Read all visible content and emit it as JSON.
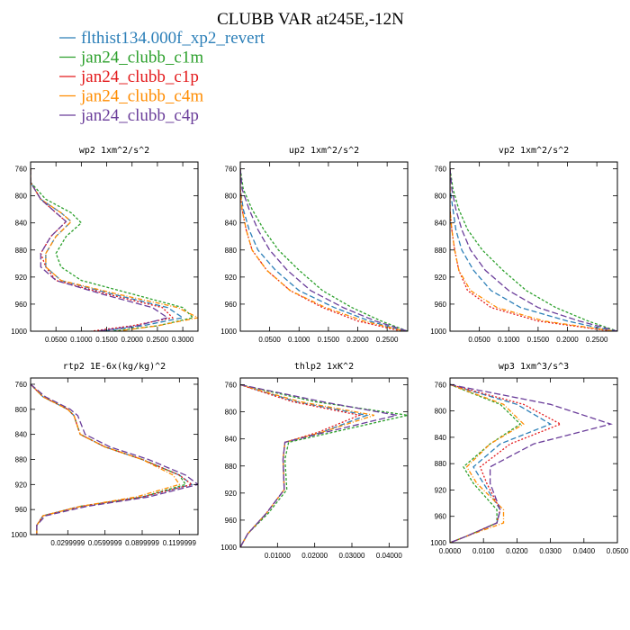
{
  "figure_title": "CLUBB VAR at245E,-12N",
  "colors": {
    "flthist134.000f_xp2_revert": "#2c7fb8",
    "jan24_clubb_c1m": "#2ca02c",
    "jan24_clubb_c1p": "#e31a1c",
    "jan24_clubb_c4m": "#ff8c00",
    "jan24_clubb_c4p": "#6a3d9a"
  },
  "legend": [
    {
      "label": "flthist134.000f_xp2_revert",
      "color": "#2c7fb8"
    },
    {
      "label": "jan24_clubb_c1m",
      "color": "#2ca02c"
    },
    {
      "label": "jan24_clubb_c1p",
      "color": "#e31a1c"
    },
    {
      "label": "jan24_clubb_c4m",
      "color": "#ff8c00"
    },
    {
      "label": "jan24_clubb_c4p",
      "color": "#6a3d9a"
    }
  ],
  "chart_data": [
    {
      "type": "line",
      "title": "wp2  1xm^2/s^2",
      "xlim": [
        0,
        0.33
      ],
      "ylim": [
        1000,
        750
      ],
      "xticks": [
        0.05,
        0.1,
        0.15,
        0.2,
        0.25,
        0.3
      ],
      "xtick_labels": [
        "0.0500",
        "0.1000",
        "0.1500",
        "0.2000",
        "0.2500",
        "0.3000"
      ],
      "yticks": [
        760,
        800,
        840,
        880,
        920,
        960,
        1000
      ],
      "series": [
        {
          "name": "flthist134.000f_xp2_revert",
          "x": [
            0.0,
            0.0,
            0.02,
            0.06,
            0.08,
            0.05,
            0.03,
            0.03,
            0.06,
            0.16,
            0.27,
            0.3,
            0.22,
            0.14
          ],
          "y": [
            760,
            780,
            805,
            825,
            838,
            860,
            885,
            905,
            925,
            945,
            965,
            980,
            992,
            1000
          ]
        },
        {
          "name": "jan24_clubb_c1m",
          "x": [
            0.0,
            0.0,
            0.03,
            0.08,
            0.1,
            0.07,
            0.05,
            0.06,
            0.1,
            0.2,
            0.3,
            0.32,
            0.25,
            0.16
          ],
          "y": [
            760,
            780,
            805,
            825,
            840,
            860,
            885,
            905,
            925,
            945,
            965,
            980,
            992,
            1000
          ]
        },
        {
          "name": "jan24_clubb_c1p",
          "x": [
            0.0,
            0.0,
            0.02,
            0.05,
            0.07,
            0.04,
            0.02,
            0.03,
            0.05,
            0.15,
            0.26,
            0.28,
            0.2,
            0.12
          ],
          "y": [
            760,
            780,
            805,
            825,
            838,
            860,
            885,
            905,
            925,
            945,
            965,
            980,
            992,
            1000
          ]
        },
        {
          "name": "jan24_clubb_c4m",
          "x": [
            0.0,
            0.0,
            0.02,
            0.06,
            0.08,
            0.05,
            0.03,
            0.03,
            0.06,
            0.17,
            0.29,
            0.33,
            0.25,
            0.17
          ],
          "y": [
            760,
            780,
            805,
            825,
            838,
            860,
            885,
            905,
            925,
            945,
            965,
            980,
            992,
            1000
          ]
        },
        {
          "name": "jan24_clubb_c4p",
          "x": [
            0.0,
            0.0,
            0.02,
            0.05,
            0.07,
            0.04,
            0.02,
            0.02,
            0.05,
            0.14,
            0.24,
            0.27,
            0.21,
            0.13
          ],
          "y": [
            760,
            780,
            805,
            825,
            838,
            860,
            885,
            905,
            925,
            945,
            965,
            980,
            992,
            1000
          ]
        }
      ]
    },
    {
      "type": "line",
      "title": "up2  1xm^2/s^2",
      "xlim": [
        0,
        0.285
      ],
      "ylim": [
        1000,
        750
      ],
      "xticks": [
        0.05,
        0.1,
        0.15,
        0.2,
        0.25
      ],
      "xtick_labels": [
        "0.0500",
        "0.1000",
        "0.1500",
        "0.2000",
        "0.2500"
      ],
      "yticks": [
        760,
        800,
        840,
        880,
        920,
        960,
        1000
      ],
      "series": [
        {
          "name": "flthist134.000f_xp2_revert",
          "x": [
            0.0,
            0.0,
            0.005,
            0.015,
            0.03,
            0.06,
            0.1,
            0.16,
            0.22,
            0.28
          ],
          "y": [
            760,
            790,
            820,
            850,
            880,
            910,
            940,
            965,
            985,
            1000
          ]
        },
        {
          "name": "jan24_clubb_c1m",
          "x": [
            0.0,
            0.005,
            0.02,
            0.04,
            0.065,
            0.1,
            0.14,
            0.19,
            0.24,
            0.285
          ],
          "y": [
            760,
            790,
            820,
            850,
            880,
            910,
            940,
            965,
            985,
            1000
          ]
        },
        {
          "name": "jan24_clubb_c1p",
          "x": [
            0.0,
            0.0,
            0.003,
            0.01,
            0.02,
            0.045,
            0.085,
            0.14,
            0.2,
            0.275
          ],
          "y": [
            760,
            790,
            820,
            850,
            880,
            910,
            940,
            965,
            985,
            1000
          ]
        },
        {
          "name": "jan24_clubb_c4m",
          "x": [
            0.0,
            0.0,
            0.003,
            0.01,
            0.02,
            0.045,
            0.085,
            0.145,
            0.21,
            0.28
          ],
          "y": [
            760,
            790,
            820,
            850,
            880,
            910,
            940,
            965,
            985,
            1000
          ]
        },
        {
          "name": "jan24_clubb_c4p",
          "x": [
            0.0,
            0.003,
            0.015,
            0.03,
            0.05,
            0.08,
            0.12,
            0.175,
            0.23,
            0.285
          ],
          "y": [
            760,
            790,
            820,
            850,
            880,
            910,
            940,
            965,
            985,
            1000
          ]
        }
      ]
    },
    {
      "type": "line",
      "title": "vp2  1xm^2/s^2",
      "xlim": [
        0,
        0.285
      ],
      "ylim": [
        1000,
        750
      ],
      "xticks": [
        0.05,
        0.1,
        0.15,
        0.2,
        0.25
      ],
      "xtick_labels": [
        "0.0500",
        "0.1000",
        "0.1500",
        "0.2000",
        "0.2500"
      ],
      "yticks": [
        760,
        800,
        840,
        880,
        920,
        960,
        1000
      ],
      "series": [
        {
          "name": "flthist134.000f_xp2_revert",
          "x": [
            0.0,
            0.0,
            0.005,
            0.01,
            0.02,
            0.04,
            0.07,
            0.12,
            0.2,
            0.28
          ],
          "y": [
            760,
            790,
            820,
            850,
            880,
            910,
            940,
            965,
            985,
            1000
          ]
        },
        {
          "name": "jan24_clubb_c1m",
          "x": [
            0.0,
            0.005,
            0.015,
            0.03,
            0.055,
            0.09,
            0.13,
            0.18,
            0.235,
            0.285
          ],
          "y": [
            760,
            790,
            820,
            850,
            880,
            910,
            940,
            965,
            985,
            1000
          ]
        },
        {
          "name": "jan24_clubb_c1p",
          "x": [
            0.0,
            0.0,
            0.0,
            0.003,
            0.008,
            0.015,
            0.03,
            0.07,
            0.15,
            0.275
          ],
          "y": [
            760,
            790,
            820,
            850,
            880,
            910,
            940,
            965,
            985,
            1000
          ]
        },
        {
          "name": "jan24_clubb_c4m",
          "x": [
            0.0,
            0.0,
            0.0,
            0.003,
            0.008,
            0.015,
            0.035,
            0.08,
            0.16,
            0.28
          ],
          "y": [
            760,
            790,
            820,
            850,
            880,
            910,
            940,
            965,
            985,
            1000
          ]
        },
        {
          "name": "jan24_clubb_c4p",
          "x": [
            0.0,
            0.003,
            0.01,
            0.02,
            0.035,
            0.06,
            0.1,
            0.15,
            0.22,
            0.285
          ],
          "y": [
            760,
            790,
            820,
            850,
            880,
            910,
            940,
            965,
            985,
            1000
          ]
        }
      ]
    },
    {
      "type": "line",
      "title": "rtp2  1E-6x(kg/kg)^2",
      "xlim": [
        0,
        0.135
      ],
      "ylim": [
        1000,
        750
      ],
      "xticks": [
        0.03,
        0.06,
        0.09,
        0.12
      ],
      "xtick_labels": [
        "0.0299999",
        "0.0599999",
        "0.0899999",
        "0.1199999"
      ],
      "yticks": [
        760,
        800,
        840,
        880,
        920,
        960,
        1000
      ],
      "series": [
        {
          "name": "flthist134.000f_xp2_revert",
          "x": [
            0.0,
            0.01,
            0.03,
            0.035,
            0.04,
            0.06,
            0.09,
            0.12,
            0.13,
            0.09,
            0.04,
            0.01,
            0.005,
            0.005
          ],
          "y": [
            760,
            780,
            800,
            810,
            840,
            860,
            880,
            905,
            920,
            940,
            955,
            970,
            985,
            1000
          ]
        },
        {
          "name": "jan24_clubb_c1m",
          "x": [
            0.0,
            0.01,
            0.03,
            0.035,
            0.04,
            0.06,
            0.09,
            0.12,
            0.125,
            0.09,
            0.04,
            0.01,
            0.005,
            0.005
          ],
          "y": [
            760,
            780,
            800,
            810,
            840,
            860,
            880,
            905,
            920,
            940,
            955,
            970,
            985,
            1000
          ]
        },
        {
          "name": "jan24_clubb_c1p",
          "x": [
            0.0,
            0.01,
            0.03,
            0.035,
            0.04,
            0.06,
            0.09,
            0.12,
            0.13,
            0.09,
            0.04,
            0.01,
            0.005,
            0.005
          ],
          "y": [
            760,
            780,
            800,
            810,
            840,
            860,
            880,
            905,
            920,
            940,
            955,
            970,
            985,
            1000
          ]
        },
        {
          "name": "jan24_clubb_c4m",
          "x": [
            0.0,
            0.01,
            0.03,
            0.035,
            0.04,
            0.06,
            0.09,
            0.115,
            0.12,
            0.085,
            0.04,
            0.01,
            0.005,
            0.005
          ],
          "y": [
            760,
            780,
            800,
            810,
            840,
            860,
            880,
            905,
            920,
            940,
            955,
            970,
            985,
            1000
          ]
        },
        {
          "name": "jan24_clubb_c4p",
          "x": [
            0.0,
            0.012,
            0.032,
            0.038,
            0.044,
            0.064,
            0.095,
            0.125,
            0.135,
            0.095,
            0.045,
            0.012,
            0.005,
            0.005
          ],
          "y": [
            760,
            780,
            800,
            810,
            840,
            860,
            880,
            905,
            920,
            940,
            955,
            970,
            985,
            1000
          ]
        }
      ]
    },
    {
      "type": "line",
      "title": "thlp2  1xK^2",
      "xlim": [
        0,
        0.045
      ],
      "ylim": [
        1000,
        750
      ],
      "xticks": [
        0.01,
        0.02,
        0.03,
        0.04
      ],
      "xtick_labels": [
        "0.01000",
        "0.02000",
        "0.03000",
        "0.04000"
      ],
      "yticks": [
        760,
        800,
        840,
        880,
        920,
        960,
        1000
      ],
      "series": [
        {
          "name": "flthist134.000f_xp2_revert",
          "x": [
            0.0,
            0.015,
            0.034,
            0.022,
            0.012,
            0.0115,
            0.0118,
            0.007,
            0.002,
            0.0
          ],
          "y": [
            760,
            785,
            805,
            830,
            845,
            870,
            915,
            950,
            980,
            1000
          ]
        },
        {
          "name": "jan24_clubb_c1m",
          "x": [
            0.0,
            0.02,
            0.045,
            0.025,
            0.013,
            0.012,
            0.0125,
            0.0075,
            0.002,
            0.0
          ],
          "y": [
            760,
            785,
            805,
            830,
            845,
            870,
            915,
            950,
            980,
            1000
          ]
        },
        {
          "name": "jan24_clubb_c1p",
          "x": [
            0.0,
            0.014,
            0.032,
            0.021,
            0.012,
            0.0115,
            0.0118,
            0.007,
            0.002,
            0.0
          ],
          "y": [
            760,
            785,
            805,
            830,
            845,
            870,
            915,
            950,
            980,
            1000
          ]
        },
        {
          "name": "jan24_clubb_c4m",
          "x": [
            0.0,
            0.016,
            0.036,
            0.022,
            0.012,
            0.0115,
            0.0118,
            0.007,
            0.002,
            0.0
          ],
          "y": [
            760,
            785,
            805,
            830,
            845,
            870,
            915,
            950,
            980,
            1000
          ]
        },
        {
          "name": "jan24_clubb_c4p",
          "x": [
            0.0,
            0.022,
            0.042,
            0.023,
            0.012,
            0.0115,
            0.0118,
            0.007,
            0.002,
            0.0
          ],
          "y": [
            760,
            785,
            805,
            830,
            845,
            870,
            915,
            950,
            980,
            1000
          ]
        }
      ]
    },
    {
      "type": "line",
      "title": "wp3  1xm^3/s^3",
      "xlim": [
        0,
        0.05
      ],
      "ylim": [
        1000,
        750
      ],
      "xticks": [
        0.0,
        0.01,
        0.02,
        0.03,
        0.04,
        0.05
      ],
      "xtick_labels": [
        "0.0000",
        "0.0100",
        "0.0200",
        "0.0300",
        "0.0400",
        "0.0500"
      ],
      "yticks": [
        760,
        800,
        840,
        880,
        920,
        960,
        1000
      ],
      "series": [
        {
          "name": "flthist134.000f_xp2_revert",
          "x": [
            0.0,
            0.02,
            0.03,
            0.015,
            0.007,
            0.01,
            0.015,
            0.014,
            0.005,
            0.0
          ],
          "y": [
            760,
            790,
            820,
            850,
            885,
            910,
            950,
            970,
            990,
            1000
          ]
        },
        {
          "name": "jan24_clubb_c1m",
          "x": [
            0.0,
            0.015,
            0.021,
            0.012,
            0.004,
            0.007,
            0.014,
            0.014,
            0.005,
            0.0
          ],
          "y": [
            760,
            790,
            820,
            850,
            885,
            910,
            950,
            970,
            990,
            1000
          ]
        },
        {
          "name": "jan24_clubb_c1p",
          "x": [
            0.0,
            0.022,
            0.033,
            0.018,
            0.009,
            0.011,
            0.015,
            0.014,
            0.005,
            0.0
          ],
          "y": [
            760,
            790,
            820,
            850,
            885,
            910,
            950,
            970,
            990,
            1000
          ]
        },
        {
          "name": "jan24_clubb_c4m",
          "x": [
            0.0,
            0.016,
            0.022,
            0.012,
            0.005,
            0.008,
            0.016,
            0.016,
            0.005,
            0.0
          ],
          "y": [
            760,
            790,
            820,
            850,
            885,
            910,
            950,
            970,
            990,
            1000
          ]
        },
        {
          "name": "jan24_clubb_c4p",
          "x": [
            0.0,
            0.03,
            0.048,
            0.025,
            0.012,
            0.012,
            0.015,
            0.014,
            0.005,
            0.0
          ],
          "y": [
            760,
            790,
            820,
            850,
            885,
            910,
            950,
            970,
            990,
            1000
          ]
        }
      ]
    }
  ]
}
